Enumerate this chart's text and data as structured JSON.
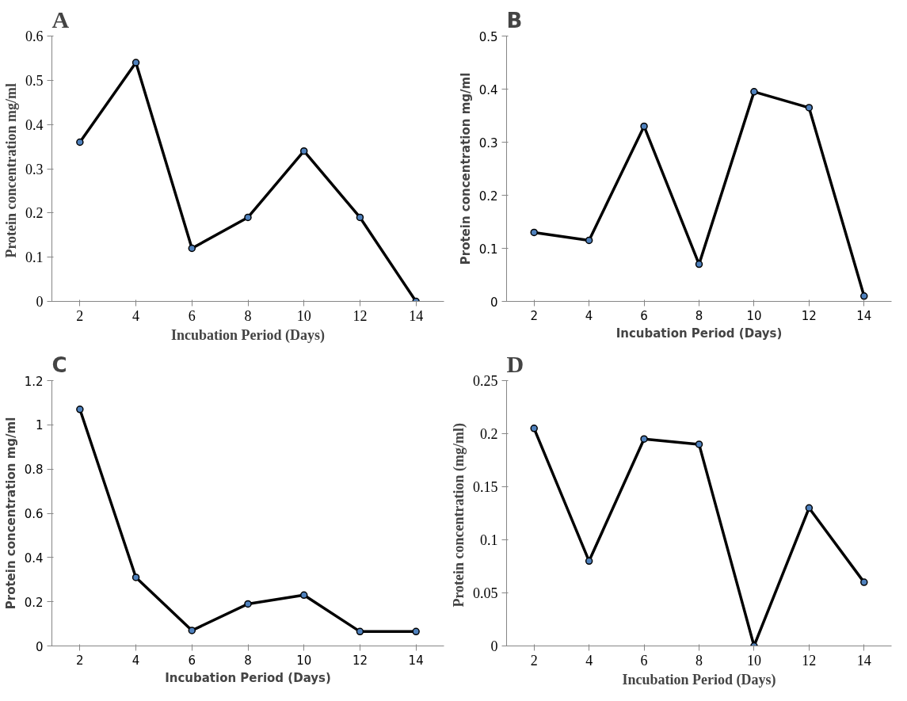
{
  "chart_data": [
    {
      "type": "line",
      "title": "A",
      "xlabel": "Incubation Period (Days)",
      "ylabel": "Protein concentration  mg/ml",
      "categories": [
        "2",
        "4",
        "6",
        "8",
        "10",
        "12",
        "14"
      ],
      "series": [
        {
          "color": "#000000",
          "values": [
            0.36,
            0.54,
            0.12,
            0.19,
            0.34,
            0.19,
            0.0
          ]
        }
      ],
      "ylim": [
        0,
        0.6
      ],
      "yticks": [
        0,
        0.1,
        0.2,
        0.3,
        0.4,
        0.5,
        0.6
      ],
      "marker": "circle",
      "grid": false
    },
    {
      "type": "line",
      "title": "B",
      "xlabel": "Incubation Period (Days)",
      "ylabel": "Protein concentration mg/ml",
      "categories": [
        "2",
        "4",
        "6",
        "8",
        "10",
        "12",
        "14"
      ],
      "series": [
        {
          "color": "#000000",
          "values": [
            0.13,
            0.115,
            0.33,
            0.07,
            0.395,
            0.365,
            0.01
          ]
        }
      ],
      "ylim": [
        0,
        0.5
      ],
      "yticks": [
        0,
        0.1,
        0.2,
        0.3,
        0.4,
        0.5
      ],
      "marker": "circle",
      "grid": false
    },
    {
      "type": "line",
      "title": "C",
      "xlabel": "Incubation Period (Days)",
      "ylabel": "Protein concentration mg/ml",
      "categories": [
        "2",
        "4",
        "6",
        "8",
        "10",
        "12",
        "14"
      ],
      "series": [
        {
          "color": "#000000",
          "values": [
            1.07,
            0.31,
            0.07,
            0.19,
            0.23,
            0.065,
            0.065
          ]
        }
      ],
      "ylim": [
        0,
        1.2
      ],
      "yticks": [
        0,
        0.2,
        0.4,
        0.6,
        0.8,
        1,
        1.2
      ],
      "marker": "circle",
      "grid": false
    },
    {
      "type": "line",
      "title": "D",
      "xlabel": "Incubation Period (Days)",
      "ylabel": "Protein concentration  (mg/ml)",
      "categories": [
        "2",
        "4",
        "6",
        "8",
        "10",
        "12",
        "14"
      ],
      "series": [
        {
          "color": "#000000",
          "values": [
            0.205,
            0.08,
            0.195,
            0.19,
            0.0,
            0.13,
            0.06
          ]
        }
      ],
      "ylim": [
        0,
        0.25
      ],
      "yticks": [
        0,
        0.05,
        0.1,
        0.15,
        0.2,
        0.25
      ],
      "marker": "circle",
      "grid": false
    }
  ]
}
